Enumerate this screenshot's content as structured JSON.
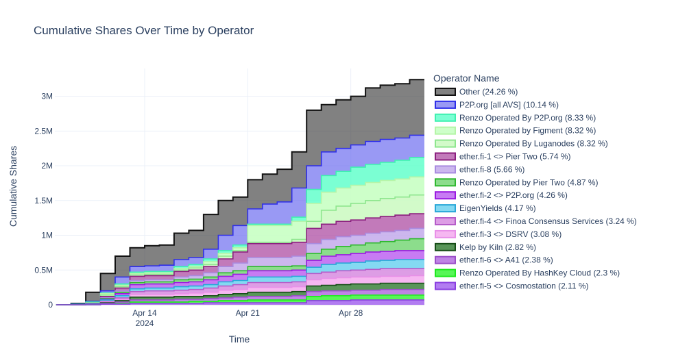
{
  "chart_data": {
    "type": "area",
    "title": "Cumulative Shares Over Time by Operator",
    "xlabel": "Time",
    "ylabel": "Cumulative Shares",
    "x_ticks": [
      {
        "pos": 14,
        "label": "Apr 14",
        "sub": "2024"
      },
      {
        "pos": 21,
        "label": "Apr 21",
        "sub": ""
      },
      {
        "pos": 28,
        "label": "Apr 28",
        "sub": ""
      }
    ],
    "y_ticks": [
      {
        "value": 0,
        "label": "0"
      },
      {
        "value": 0.5,
        "label": "0.5M"
      },
      {
        "value": 1,
        "label": "1M"
      },
      {
        "value": 1.5,
        "label": "1.5M"
      },
      {
        "value": 2,
        "label": "2M"
      },
      {
        "value": 2.5,
        "label": "2.5M"
      },
      {
        "value": 3,
        "label": "3M"
      }
    ],
    "x_range": [
      "Apr 8",
      "May 3"
    ],
    "y_range_millions": [
      0,
      3.4
    ],
    "grid": true,
    "legend_title": "Operator Name",
    "legend_position": "right",
    "x_days": [
      8,
      9,
      10,
      11,
      12,
      13,
      14,
      15,
      16,
      17,
      18,
      19,
      20,
      21,
      22,
      23,
      24,
      25,
      26,
      27,
      28,
      29,
      30,
      31,
      32,
      33
    ],
    "stack_cumulative_millions": [
      [
        0,
        0.02,
        0.18,
        0.45,
        0.7,
        0.82,
        0.85,
        0.86,
        1.03,
        1.07,
        1.3,
        1.5,
        1.55,
        1.8,
        1.88,
        1.95,
        2.2,
        2.8,
        2.88,
        2.95,
        3.0,
        3.12,
        3.16,
        3.18,
        3.24,
        3.24
      ],
      [
        0,
        0.01,
        0.05,
        0.2,
        0.4,
        0.55,
        0.56,
        0.57,
        0.65,
        0.68,
        0.8,
        1.0,
        1.14,
        1.38,
        1.45,
        1.48,
        1.68,
        2.0,
        2.2,
        2.25,
        2.3,
        2.35,
        2.38,
        2.4,
        2.44,
        2.44
      ],
      [
        0,
        0.01,
        0.04,
        0.17,
        0.3,
        0.47,
        0.48,
        0.48,
        0.55,
        0.58,
        0.66,
        0.78,
        0.86,
        1.16,
        1.16,
        1.16,
        1.26,
        1.66,
        1.86,
        1.92,
        1.98,
        2.02,
        2.05,
        2.08,
        2.12,
        2.12
      ],
      [
        0,
        0.01,
        0.03,
        0.16,
        0.28,
        0.45,
        0.46,
        0.46,
        0.52,
        0.55,
        0.62,
        0.74,
        0.82,
        1.14,
        1.14,
        1.14,
        1.2,
        1.46,
        1.62,
        1.68,
        1.72,
        1.76,
        1.79,
        1.81,
        1.84,
        1.84
      ],
      [
        0,
        0.01,
        0.03,
        0.14,
        0.26,
        0.43,
        0.44,
        0.44,
        0.5,
        0.53,
        0.58,
        0.7,
        0.78,
        0.9,
        0.9,
        0.9,
        0.94,
        1.2,
        1.36,
        1.42,
        1.46,
        1.5,
        1.53,
        1.55,
        1.58,
        1.58
      ],
      [
        0,
        0.01,
        0.02,
        0.12,
        0.24,
        0.41,
        0.42,
        0.42,
        0.48,
        0.5,
        0.55,
        0.66,
        0.76,
        0.88,
        0.88,
        0.88,
        0.9,
        1.1,
        1.16,
        1.2,
        1.22,
        1.25,
        1.27,
        1.29,
        1.31,
        1.31
      ],
      [
        0,
        0.01,
        0.02,
        0.1,
        0.2,
        0.35,
        0.36,
        0.36,
        0.4,
        0.42,
        0.46,
        0.55,
        0.6,
        0.68,
        0.68,
        0.68,
        0.7,
        0.88,
        0.94,
        0.98,
        1.0,
        1.03,
        1.05,
        1.07,
        1.1,
        1.1
      ],
      [
        0,
        0.01,
        0.02,
        0.09,
        0.18,
        0.32,
        0.33,
        0.33,
        0.36,
        0.37,
        0.4,
        0.46,
        0.49,
        0.55,
        0.55,
        0.55,
        0.56,
        0.74,
        0.8,
        0.84,
        0.86,
        0.89,
        0.91,
        0.93,
        0.95,
        0.95
      ],
      [
        0,
        0.01,
        0.02,
        0.08,
        0.16,
        0.29,
        0.3,
        0.3,
        0.32,
        0.33,
        0.36,
        0.41,
        0.44,
        0.49,
        0.49,
        0.49,
        0.5,
        0.64,
        0.7,
        0.72,
        0.74,
        0.76,
        0.77,
        0.78,
        0.78,
        0.78
      ],
      [
        0,
        0.01,
        0.02,
        0.07,
        0.13,
        0.23,
        0.24,
        0.24,
        0.26,
        0.27,
        0.29,
        0.33,
        0.35,
        0.4,
        0.4,
        0.4,
        0.41,
        0.54,
        0.58,
        0.6,
        0.61,
        0.63,
        0.64,
        0.65,
        0.65,
        0.65
      ],
      [
        0,
        0.0,
        0.01,
        0.05,
        0.1,
        0.19,
        0.2,
        0.2,
        0.21,
        0.22,
        0.24,
        0.27,
        0.29,
        0.32,
        0.32,
        0.32,
        0.33,
        0.45,
        0.47,
        0.49,
        0.5,
        0.51,
        0.52,
        0.52,
        0.52,
        0.52
      ],
      [
        0,
        0.0,
        0.01,
        0.04,
        0.08,
        0.15,
        0.15,
        0.15,
        0.16,
        0.17,
        0.18,
        0.21,
        0.22,
        0.25,
        0.25,
        0.25,
        0.26,
        0.36,
        0.38,
        0.39,
        0.4,
        0.4,
        0.41,
        0.41,
        0.42,
        0.42
      ],
      [
        0,
        0.0,
        0.01,
        0.03,
        0.06,
        0.11,
        0.11,
        0.11,
        0.12,
        0.12,
        0.13,
        0.15,
        0.16,
        0.18,
        0.18,
        0.18,
        0.19,
        0.27,
        0.28,
        0.29,
        0.3,
        0.3,
        0.31,
        0.31,
        0.31,
        0.31
      ],
      [
        0,
        0.0,
        0.01,
        0.02,
        0.04,
        0.07,
        0.07,
        0.07,
        0.08,
        0.08,
        0.09,
        0.1,
        0.11,
        0.12,
        0.12,
        0.12,
        0.13,
        0.19,
        0.2,
        0.2,
        0.21,
        0.21,
        0.22,
        0.22,
        0.22,
        0.22
      ],
      [
        0,
        0.0,
        0.0,
        0.01,
        0.02,
        0.04,
        0.04,
        0.04,
        0.04,
        0.05,
        0.05,
        0.06,
        0.06,
        0.07,
        0.07,
        0.07,
        0.07,
        0.12,
        0.13,
        0.13,
        0.14,
        0.14,
        0.14,
        0.14,
        0.14,
        0.14
      ],
      [
        0,
        0.0,
        0.0,
        0.01,
        0.01,
        0.02,
        0.02,
        0.02,
        0.02,
        0.02,
        0.03,
        0.03,
        0.03,
        0.03,
        0.03,
        0.03,
        0.03,
        0.06,
        0.06,
        0.06,
        0.07,
        0.07,
        0.07,
        0.07,
        0.07,
        0.07
      ]
    ],
    "series": [
      {
        "name": "Other (24.26 %)",
        "line": "#111111",
        "fill": "rgba(64,64,64,0.66)"
      },
      {
        "name": "P2P.org [all AVS] (10.14 %)",
        "line": "#2f2fe8",
        "fill": "rgba(110,110,240,0.70)"
      },
      {
        "name": "Renzo Operated By P2P.org (8.33 %)",
        "line": "#3ff0b0",
        "fill": "rgba(90,255,200,0.80)"
      },
      {
        "name": "Renzo Operated by Figment (8.32 %)",
        "line": "#b6f5a8",
        "fill": "rgba(200,255,195,0.90)"
      },
      {
        "name": "Renzo Operated By Luganodes (8.32 %)",
        "line": "#8ee68e",
        "fill": "rgba(205,250,195,0.90)"
      },
      {
        "name": "ether.fi-1 <> Pier Two (5.74 %)",
        "line": "#8b1f7e",
        "fill": "rgba(170,70,160,0.72)"
      },
      {
        "name": "ether.fi-8 (5.66 %)",
        "line": "#a98be0",
        "fill": "rgba(195,170,235,0.85)"
      },
      {
        "name": "Renzo Operated by Pier Two (4.87 %)",
        "line": "#2fb82f",
        "fill": "rgba(120,215,120,0.85)"
      },
      {
        "name": "ether.fi-2 <> P2P.org (4.26 %)",
        "line": "#9a1ae0",
        "fill": "rgba(185,90,240,0.80)"
      },
      {
        "name": "EigenYields (4.17 %)",
        "line": "#2aa8d8",
        "fill": "rgba(110,210,240,0.85)"
      },
      {
        "name": "ether.fi-4 <> Finoa Consensus Services (3.24 %)",
        "line": "#b55cc9",
        "fill": "rgba(215,140,225,0.85)"
      },
      {
        "name": "ether.fi-3 <> DSRV (3.08 %)",
        "line": "#e890e8",
        "fill": "rgba(245,175,240,0.90)"
      },
      {
        "name": "Kelp by Kiln (2.82 %)",
        "line": "#174d17",
        "fill": "rgba(60,130,60,0.85)"
      },
      {
        "name": "ether.fi-6 <> A41 (2.38 %)",
        "line": "#9b4fc9",
        "fill": "rgba(180,110,225,0.85)"
      },
      {
        "name": "Renzo Operated By HashKey Cloud (2.3 %)",
        "line": "#1ee81e",
        "fill": "rgba(70,245,70,0.90)"
      },
      {
        "name": "ether.fi-5 <> Cosmostation (2.11 %)",
        "line": "#8a3fe0",
        "fill": "rgba(170,110,240,0.90)"
      }
    ]
  }
}
